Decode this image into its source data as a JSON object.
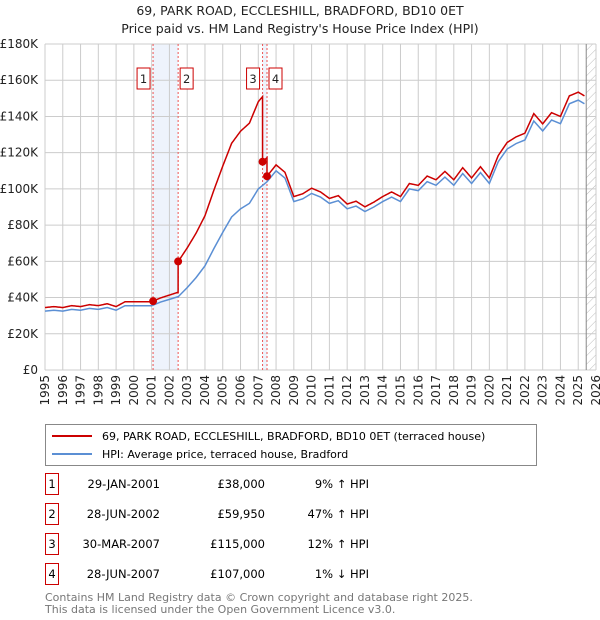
{
  "chart_data": {
    "type": "line",
    "title": "69, PARK ROAD, ECCLESHILL, BRADFORD, BD10 0ET",
    "subtitle": "Price paid vs. HM Land Registry's House Price Index (HPI)",
    "xlim": [
      1995,
      2026
    ],
    "ylim": [
      0,
      180000
    ],
    "y_ticks": [
      {
        "v": 0,
        "label": "£0"
      },
      {
        "v": 20000,
        "label": "£20K"
      },
      {
        "v": 40000,
        "label": "£40K"
      },
      {
        "v": 60000,
        "label": "£60K"
      },
      {
        "v": 80000,
        "label": "£80K"
      },
      {
        "v": 100000,
        "label": "£100K"
      },
      {
        "v": 120000,
        "label": "£120K"
      },
      {
        "v": 140000,
        "label": "£140K"
      },
      {
        "v": 160000,
        "label": "£160K"
      },
      {
        "v": 180000,
        "label": "£180K"
      }
    ],
    "x_ticks": [
      "1995",
      "1996",
      "1997",
      "1998",
      "1999",
      "2000",
      "2001",
      "2002",
      "2003",
      "2004",
      "2005",
      "2006",
      "2007",
      "2008",
      "2009",
      "2010",
      "2011",
      "2012",
      "2013",
      "2014",
      "2015",
      "2016",
      "2017",
      "2018",
      "2019",
      "2020",
      "2021",
      "2022",
      "2023",
      "2024",
      "2025",
      "2026"
    ],
    "hpi_series": {
      "name": "HPI: Average price, terraced house, Bradford",
      "color": "#5b8fd4",
      "x": [
        1995,
        1995.5,
        1996,
        1996.5,
        1997,
        1997.5,
        1998,
        1998.5,
        1999,
        1999.5,
        2000,
        2000.5,
        2001,
        2001.5,
        2002,
        2002.5,
        2003,
        2003.5,
        2004,
        2004.5,
        2005,
        2005.5,
        2006,
        2006.5,
        2007,
        2007.5,
        2008,
        2008.5,
        2009,
        2009.5,
        2010,
        2010.5,
        2011,
        2011.5,
        2012,
        2012.5,
        2013,
        2013.5,
        2014,
        2014.5,
        2015,
        2015.5,
        2016,
        2016.5,
        2017,
        2017.5,
        2018,
        2018.5,
        2019,
        2019.5,
        2020,
        2020.5,
        2021,
        2021.5,
        2022,
        2022.5,
        2023,
        2023.5,
        2024,
        2024.5,
        2025,
        2025.35
      ],
      "y": [
        32500,
        33000,
        32500,
        33500,
        33000,
        34000,
        33500,
        34500,
        33000,
        35500,
        35500,
        35500,
        35500,
        37500,
        39000,
        40500,
        45500,
        51000,
        57500,
        67000,
        76000,
        84500,
        89000,
        92000,
        100000,
        104000,
        110000,
        106000,
        93000,
        94500,
        97500,
        95500,
        92000,
        93500,
        89000,
        90500,
        87500,
        90000,
        93000,
        95500,
        93000,
        100000,
        99000,
        104000,
        102000,
        106500,
        102000,
        108500,
        103000,
        109000,
        103000,
        115000,
        122000,
        125000,
        127000,
        137500,
        132000,
        138000,
        136000,
        147000,
        149000,
        147000
      ]
    },
    "price_series": {
      "name": "69, PARK ROAD, ECCLESHILL, BRADFORD, BD10 0ET (terraced house)",
      "color": "#cc0000"
    },
    "sales": [
      {
        "n": "1",
        "date": "29-JAN-2001",
        "x": 2001.08,
        "price": 38000,
        "price_label": "£38,000",
        "hpi_diff": "9% ↑ HPI"
      },
      {
        "n": "2",
        "date": "28-JUN-2002",
        "x": 2002.49,
        "price": 59950,
        "price_label": "£59,950",
        "hpi_diff": "47% ↑ HPI"
      },
      {
        "n": "3",
        "date": "30-MAR-2007",
        "x": 2007.24,
        "price": 115000,
        "price_label": "£115,000",
        "hpi_diff": "12% ↑ HPI"
      },
      {
        "n": "4",
        "date": "28-JUN-2007",
        "x": 2007.49,
        "price": 107000,
        "price_label": "£107,000",
        "hpi_diff": "1% ↓ HPI"
      }
    ],
    "projection_start": 2025.45,
    "legend_placement": "bottom"
  },
  "footer": {
    "line1": "Contains HM Land Registry data © Crown copyright and database right 2025.",
    "line2": "This data is licensed under the Open Government Licence v3.0."
  }
}
